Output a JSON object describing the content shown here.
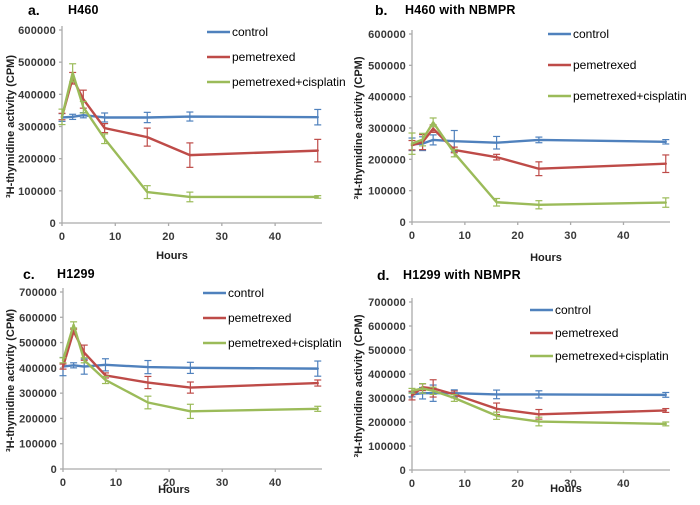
{
  "figure": {
    "background": "#ffffff"
  },
  "colors": {
    "control": "#4F81BD",
    "pemetrexed": "#BE4B48",
    "pemetrexed_cisplatin": "#9BBB59",
    "axis": "#ABABAB",
    "tick_text": "#3A3A3A"
  },
  "chart_data": [
    {
      "type": "line",
      "panel_id": "a",
      "panel_label": "a.",
      "title": "H460",
      "xlabel": "Hours",
      "ylabel": "³H-thymidine activity (CPM)",
      "xlim": [
        0,
        48.8
      ],
      "ylim": [
        0,
        600000
      ],
      "ytick_step": 100000,
      "xticks": [
        0,
        10,
        20,
        30,
        40
      ],
      "x": [
        0,
        2,
        4,
        8,
        16,
        24,
        48
      ],
      "grid": false,
      "legend_position": "top-right",
      "series": [
        {
          "name": "control",
          "color_key": "control",
          "values": [
            328000,
            330000,
            335000,
            328000,
            328000,
            331000,
            329000
          ],
          "errors": [
            12000,
            8000,
            8000,
            14000,
            16000,
            14000,
            24000
          ]
        },
        {
          "name": "pemetrexed",
          "color_key": "pemetrexed",
          "values": [
            331000,
            450000,
            385000,
            295000,
            267000,
            211000,
            225000
          ],
          "errors": [
            10000,
            18000,
            28000,
            14000,
            28000,
            38000,
            35000
          ]
        },
        {
          "name": "pemetrexed+cisplatin",
          "color_key": "pemetrexed_cisplatin",
          "values": [
            330000,
            467000,
            360000,
            262000,
            96000,
            81000,
            81000
          ],
          "errors": [
            24000,
            28000,
            18000,
            15000,
            20000,
            15000,
            4000
          ]
        }
      ]
    },
    {
      "type": "line",
      "panel_id": "b",
      "panel_label": "b.",
      "title": "H460 with NBMPR",
      "xlabel": "Hours",
      "ylabel": "³H-thymidine activity (CPM)",
      "xlim": [
        0,
        48.8
      ],
      "ylim": [
        0,
        600000
      ],
      "ytick_step": 100000,
      "xticks": [
        0,
        10,
        20,
        30,
        40
      ],
      "x": [
        0,
        2,
        4,
        8,
        16,
        24,
        48
      ],
      "grid": false,
      "legend_position": "top-right",
      "series": [
        {
          "name": "control",
          "color_key": "control",
          "values": [
            248000,
            250000,
            262000,
            258000,
            253000,
            262000,
            256000
          ],
          "errors": [
            20000,
            22000,
            16000,
            34000,
            20000,
            9000,
            7000
          ]
        },
        {
          "name": "pemetrexed",
          "color_key": "pemetrexed",
          "values": [
            245000,
            255000,
            298000,
            230000,
            207000,
            170000,
            186000
          ],
          "errors": [
            15000,
            24000,
            12000,
            9000,
            9000,
            22000,
            28000
          ]
        },
        {
          "name": "pemetrexed+cisplatin",
          "color_key": "pemetrexed_cisplatin",
          "values": [
            250000,
            263000,
            318000,
            220000,
            63000,
            55000,
            62000
          ],
          "errors": [
            34000,
            20000,
            14000,
            12000,
            12000,
            13000,
            15000
          ]
        }
      ]
    },
    {
      "type": "line",
      "panel_id": "c",
      "panel_label": "c.",
      "title": "H1299",
      "xlabel": "Hours",
      "ylabel": "³H-thymidine activity (CPM)",
      "xlim": [
        0,
        48.8
      ],
      "ylim": [
        0,
        700000
      ],
      "ytick_step": 100000,
      "xticks": [
        0,
        10,
        20,
        30,
        40
      ],
      "x": [
        0,
        2,
        4,
        8,
        16,
        24,
        48
      ],
      "grid": false,
      "legend_position": "top-right",
      "series": [
        {
          "name": "control",
          "color_key": "control",
          "values": [
            405000,
            410000,
            405000,
            412000,
            403000,
            400000,
            397000
          ],
          "errors": [
            36000,
            10000,
            30000,
            24000,
            26000,
            22000,
            30000
          ]
        },
        {
          "name": "pemetrexed",
          "color_key": "pemetrexed",
          "values": [
            405000,
            545000,
            460000,
            370000,
            342000,
            322000,
            340000
          ],
          "errors": [
            10000,
            8000,
            30000,
            10000,
            24000,
            22000,
            12000
          ]
        },
        {
          "name": "pemetrexed+cisplatin",
          "color_key": "pemetrexed_cisplatin",
          "values": [
            430000,
            570000,
            430000,
            352000,
            263000,
            228000,
            238000
          ],
          "errors": [
            10000,
            12000,
            10000,
            14000,
            25000,
            28000,
            10000
          ]
        }
      ]
    },
    {
      "type": "line",
      "panel_id": "d",
      "panel_label": "d.",
      "title": "H1299 with NBMPR",
      "xlabel": "Hours",
      "ylabel": "³H-thymidine activity (CPM)",
      "xlim": [
        0,
        48.8
      ],
      "ylim": [
        0,
        700000
      ],
      "ytick_step": 100000,
      "xticks": [
        0,
        10,
        20,
        30,
        40
      ],
      "x": [
        0,
        2,
        4,
        8,
        16,
        24,
        48
      ],
      "grid": false,
      "legend_position": "top-right",
      "series": [
        {
          "name": "control",
          "color_key": "control",
          "values": [
            315000,
            320000,
            320000,
            320000,
            315000,
            315000,
            313000
          ],
          "errors": [
            10000,
            24000,
            34000,
            14000,
            18000,
            15000,
            10000
          ]
        },
        {
          "name": "pemetrexed",
          "color_key": "pemetrexed",
          "values": [
            310000,
            345000,
            340000,
            315000,
            255000,
            232000,
            248000
          ],
          "errors": [
            18000,
            14000,
            36000,
            14000,
            24000,
            20000,
            8000
          ]
        },
        {
          "name": "pemetrexed+cisplatin",
          "color_key": "pemetrexed_cisplatin",
          "values": [
            330000,
            340000,
            330000,
            300000,
            226000,
            202000,
            192000
          ],
          "errors": [
            10000,
            20000,
            15000,
            14000,
            15000,
            18000,
            8000
          ]
        }
      ]
    }
  ]
}
